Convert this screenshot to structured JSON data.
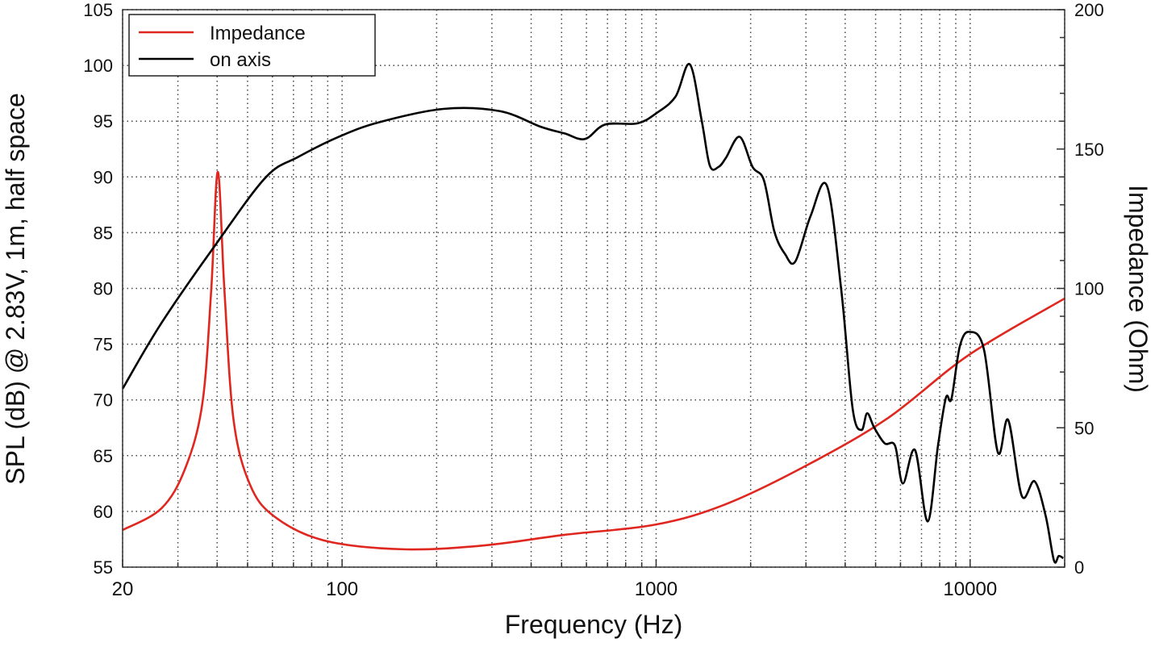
{
  "chart_data": {
    "type": "line",
    "title": "",
    "xlabel": "Frequency (Hz)",
    "ylabel": "SPL (dB) @ 2.83V, 1m, half space",
    "y2label": "Impedance (Ohm)",
    "xscale": "log",
    "xlim": [
      20,
      20000
    ],
    "ylim": [
      55,
      105
    ],
    "y2lim": [
      0,
      200
    ],
    "xticks": [
      20,
      100,
      1000,
      10000
    ],
    "xtick_labels": [
      "20",
      "100",
      "1000",
      "10000"
    ],
    "yticks": [
      55,
      60,
      65,
      70,
      75,
      80,
      85,
      90,
      95,
      100,
      105
    ],
    "ytick_labels": [
      "55",
      "60",
      "65",
      "70",
      "75",
      "80",
      "85",
      "90",
      "95",
      "100",
      "105"
    ],
    "y2ticks": [
      0,
      50,
      100,
      150,
      200
    ],
    "y2tick_labels": [
      "0",
      "50",
      "100",
      "150",
      "200"
    ],
    "grid": true,
    "legend_placement": "top-left",
    "series": [
      {
        "name": "Impedance",
        "axis": "right",
        "color": "#e0271f",
        "points": [
          [
            20,
            13.3
          ],
          [
            26.6,
            21.1
          ],
          [
            31.7,
            35.6
          ],
          [
            35.9,
            58.8
          ],
          [
            38.3,
            99.3
          ],
          [
            40.2,
            141.8
          ],
          [
            42.2,
            99.3
          ],
          [
            45.1,
            53
          ],
          [
            50.8,
            29.8
          ],
          [
            60.8,
            18.2
          ],
          [
            87.4,
            9.6
          ],
          [
            157,
            6.4
          ],
          [
            284,
            7.8
          ],
          [
            511,
            11.6
          ],
          [
            1000,
            15.3
          ],
          [
            1668,
            22.6
          ],
          [
            3015,
            36.5
          ],
          [
            5475,
            53.5
          ],
          [
            9900,
            76.1
          ],
          [
            20000,
            96.4
          ]
        ]
      },
      {
        "name": "on axis",
        "axis": "left",
        "color": "#000000",
        "points": [
          [
            20,
            71.0
          ],
          [
            26.6,
            76.9
          ],
          [
            40.2,
            84.2
          ],
          [
            57.3,
            90.0
          ],
          [
            72.6,
            91.8
          ],
          [
            97.6,
            93.6
          ],
          [
            131,
            94.9
          ],
          [
            210,
            96.1
          ],
          [
            318,
            95.9
          ],
          [
            429,
            94.5
          ],
          [
            511,
            93.9
          ],
          [
            593,
            93.4
          ],
          [
            688,
            94.7
          ],
          [
            870,
            94.8
          ],
          [
            1000,
            95.7
          ],
          [
            1153,
            97.2
          ],
          [
            1280,
            100.1
          ],
          [
            1398,
            95.0
          ],
          [
            1483,
            91.0
          ],
          [
            1581,
            90.9
          ],
          [
            1668,
            91.7
          ],
          [
            1845,
            93.6
          ],
          [
            2028,
            90.9
          ],
          [
            2204,
            89.7
          ],
          [
            2380,
            85.1
          ],
          [
            2571,
            83.1
          ],
          [
            2773,
            82.4
          ],
          [
            3105,
            86.5
          ],
          [
            3500,
            89.2
          ],
          [
            3889,
            79.8
          ],
          [
            4226,
            69.2
          ],
          [
            4508,
            67.3
          ],
          [
            4700,
            68.8
          ],
          [
            4952,
            67.5
          ],
          [
            5346,
            66.1
          ],
          [
            5765,
            65.9
          ],
          [
            6106,
            62.5
          ],
          [
            6676,
            65.5
          ],
          [
            7324,
            59.1
          ],
          [
            7900,
            65.9
          ],
          [
            8374,
            70.2
          ],
          [
            8720,
            70.1
          ],
          [
            9270,
            74.8
          ],
          [
            9935,
            76.1
          ],
          [
            11070,
            74.5
          ],
          [
            12250,
            65.3
          ],
          [
            13220,
            68.2
          ],
          [
            14600,
            61.4
          ],
          [
            16040,
            62.7
          ],
          [
            17400,
            59.6
          ],
          [
            18490,
            55.6
          ],
          [
            19150,
            56.0
          ],
          [
            19800,
            55.8
          ]
        ]
      }
    ]
  }
}
